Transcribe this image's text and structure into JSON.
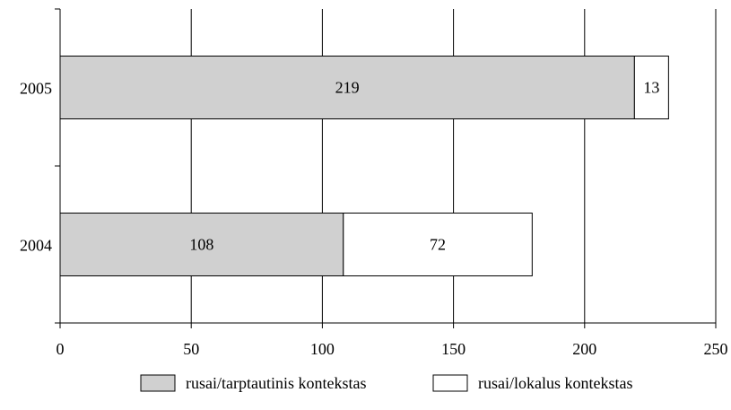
{
  "chart_data": {
    "type": "bar",
    "orientation": "horizontal",
    "stacked": true,
    "categories": [
      "2005",
      "2004"
    ],
    "series": [
      {
        "name": "rusai/tarptautinis kontekstas",
        "values": [
          219,
          108
        ],
        "color": "#d0d0d0"
      },
      {
        "name": "rusai/lokalus kontekstas",
        "values": [
          13,
          72
        ],
        "color": "#ffffff"
      }
    ],
    "xlim": [
      0,
      250
    ],
    "x_ticks": [
      "0",
      "50",
      "100",
      "150",
      "200",
      "250"
    ],
    "grid": "vertical",
    "legend_position": "bottom"
  }
}
